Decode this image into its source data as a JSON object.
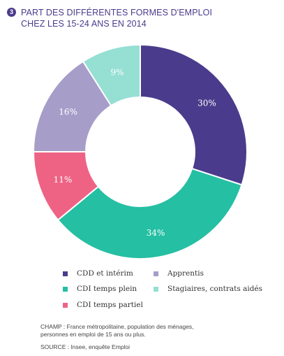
{
  "header": {
    "badge": "3",
    "title_line1": "PART DES DIFFÉRENTES FORMES D'EMPLOI",
    "title_line2": "CHEZ LES 15-24 ANS EN 2014"
  },
  "chart_data": {
    "type": "pie",
    "donut": true,
    "categories": [
      "CDD et intérim",
      "Apprentis",
      "CDI temps plein",
      "Stagiaires, contrats aidés",
      "CDI temps partiel"
    ],
    "slices": [
      {
        "name": "CDD et intérim",
        "value": 30,
        "label": "30%",
        "color": "#4b3b8c"
      },
      {
        "name": "CDI temps plein",
        "value": 34,
        "label": "34%",
        "color": "#25bfa3"
      },
      {
        "name": "CDI temps partiel",
        "value": 11,
        "label": "11%",
        "color": "#ee6384"
      },
      {
        "name": "Apprentis",
        "value": 16,
        "label": "16%",
        "color": "#a79dc9"
      },
      {
        "name": "Stagiaires, contrats aidés",
        "value": 9,
        "label": "9%",
        "color": "#95dfd3"
      }
    ],
    "legend": [
      {
        "label": "CDD et intérim",
        "color": "#4b3b8c"
      },
      {
        "label": "Apprentis",
        "color": "#a79dc9"
      },
      {
        "label": "CDI temps plein",
        "color": "#25bfa3"
      },
      {
        "label": "Stagiaires, contrats aidés",
        "color": "#95dfd3"
      },
      {
        "label": "CDI temps partiel",
        "color": "#ee6384"
      }
    ],
    "legend_placement": "bottom"
  },
  "notes": {
    "champ_line1": "CHAMP : France métropolitaine, population des ménages,",
    "champ_line2": "personnes en emploi de 15 ans ou plus.",
    "source": "SOURCE : Insee, enquête Emploi"
  }
}
